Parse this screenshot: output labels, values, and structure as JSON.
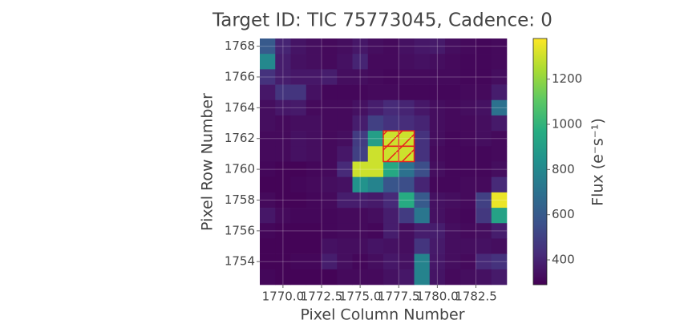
{
  "chart_data": {
    "type": "heatmap",
    "title": "Target ID: TIC 75773045, Cadence: 0",
    "x_label": "Pixel Column Number",
    "y_label": "Pixel Row Number",
    "colorbar_label": "Flux (e⁻s⁻¹)",
    "colormap": "viridis",
    "grid": true,
    "x": [
      1769,
      1770,
      1771,
      1772,
      1773,
      1774,
      1775,
      1776,
      1777,
      1778,
      1779,
      1780,
      1781,
      1782,
      1783,
      1784
    ],
    "y": [
      1768,
      1767,
      1766,
      1765,
      1764,
      1763,
      1762,
      1761,
      1760,
      1759,
      1758,
      1757,
      1756,
      1755,
      1754,
      1753
    ],
    "z": [
      [
        600,
        400,
        350,
        330,
        320,
        330,
        360,
        330,
        320,
        340,
        360,
        370,
        330,
        320,
        310,
        320
      ],
      [
        800,
        380,
        340,
        330,
        320,
        340,
        400,
        320,
        320,
        330,
        340,
        330,
        320,
        310,
        310,
        320
      ],
      [
        450,
        380,
        360,
        360,
        380,
        330,
        330,
        320,
        310,
        320,
        320,
        320,
        320,
        310,
        310,
        330
      ],
      [
        360,
        460,
        460,
        340,
        310,
        310,
        310,
        320,
        320,
        310,
        310,
        310,
        310,
        320,
        320,
        380
      ],
      [
        330,
        360,
        370,
        320,
        320,
        320,
        340,
        380,
        420,
        400,
        360,
        330,
        320,
        330,
        340,
        700
      ],
      [
        330,
        320,
        330,
        330,
        320,
        320,
        380,
        500,
        450,
        430,
        400,
        330,
        320,
        320,
        330,
        370
      ],
      [
        320,
        320,
        340,
        330,
        320,
        330,
        480,
        900,
        1300,
        1300,
        450,
        330,
        310,
        320,
        330,
        320
      ],
      [
        320,
        320,
        340,
        330,
        320,
        360,
        500,
        1300,
        1300,
        1300,
        450,
        320,
        310,
        310,
        310,
        320
      ],
      [
        310,
        300,
        300,
        310,
        320,
        420,
        1300,
        1300,
        950,
        700,
        550,
        330,
        310,
        310,
        310,
        330
      ],
      [
        300,
        300,
        310,
        320,
        330,
        340,
        850,
        780,
        580,
        550,
        400,
        310,
        310,
        320,
        320,
        420
      ],
      [
        320,
        300,
        300,
        310,
        320,
        380,
        380,
        370,
        420,
        960,
        600,
        340,
        330,
        320,
        500,
        1350
      ],
      [
        360,
        320,
        310,
        310,
        310,
        320,
        320,
        330,
        380,
        480,
        720,
        340,
        320,
        310,
        470,
        920
      ],
      [
        310,
        300,
        300,
        300,
        310,
        320,
        320,
        310,
        380,
        330,
        380,
        380,
        330,
        320,
        330,
        380
      ],
      [
        300,
        300,
        300,
        300,
        340,
        330,
        330,
        350,
        340,
        330,
        460,
        370,
        330,
        330,
        340,
        330
      ],
      [
        300,
        300,
        310,
        310,
        380,
        330,
        310,
        330,
        360,
        340,
        780,
        360,
        330,
        320,
        420,
        450
      ],
      [
        310,
        300,
        300,
        300,
        300,
        320,
        320,
        320,
        340,
        360,
        780,
        350,
        320,
        330,
        340,
        370
      ]
    ],
    "aperture": [
      [
        1777,
        1762
      ],
      [
        1778,
        1762
      ],
      [
        1777,
        1761
      ],
      [
        1778,
        1761
      ]
    ],
    "aperture_color": "#e8201c",
    "xlim": [
      1768.5,
      1784.5
    ],
    "ylim": [
      1752.5,
      1768.5
    ],
    "xticks": [
      {
        "value": 1770,
        "label": "1770.0"
      },
      {
        "value": 1772.5,
        "label": "1772.5"
      },
      {
        "value": 1775,
        "label": "1775.0"
      },
      {
        "value": 1777.5,
        "label": "1777.5"
      },
      {
        "value": 1780,
        "label": "1780.0"
      },
      {
        "value": 1782.5,
        "label": "1782.5"
      }
    ],
    "yticks": [
      1754,
      1756,
      1758,
      1760,
      1762,
      1764,
      1766,
      1768
    ],
    "clim": [
      290,
      1380
    ],
    "cticks": [
      400,
      600,
      800,
      1000,
      1200
    ]
  }
}
